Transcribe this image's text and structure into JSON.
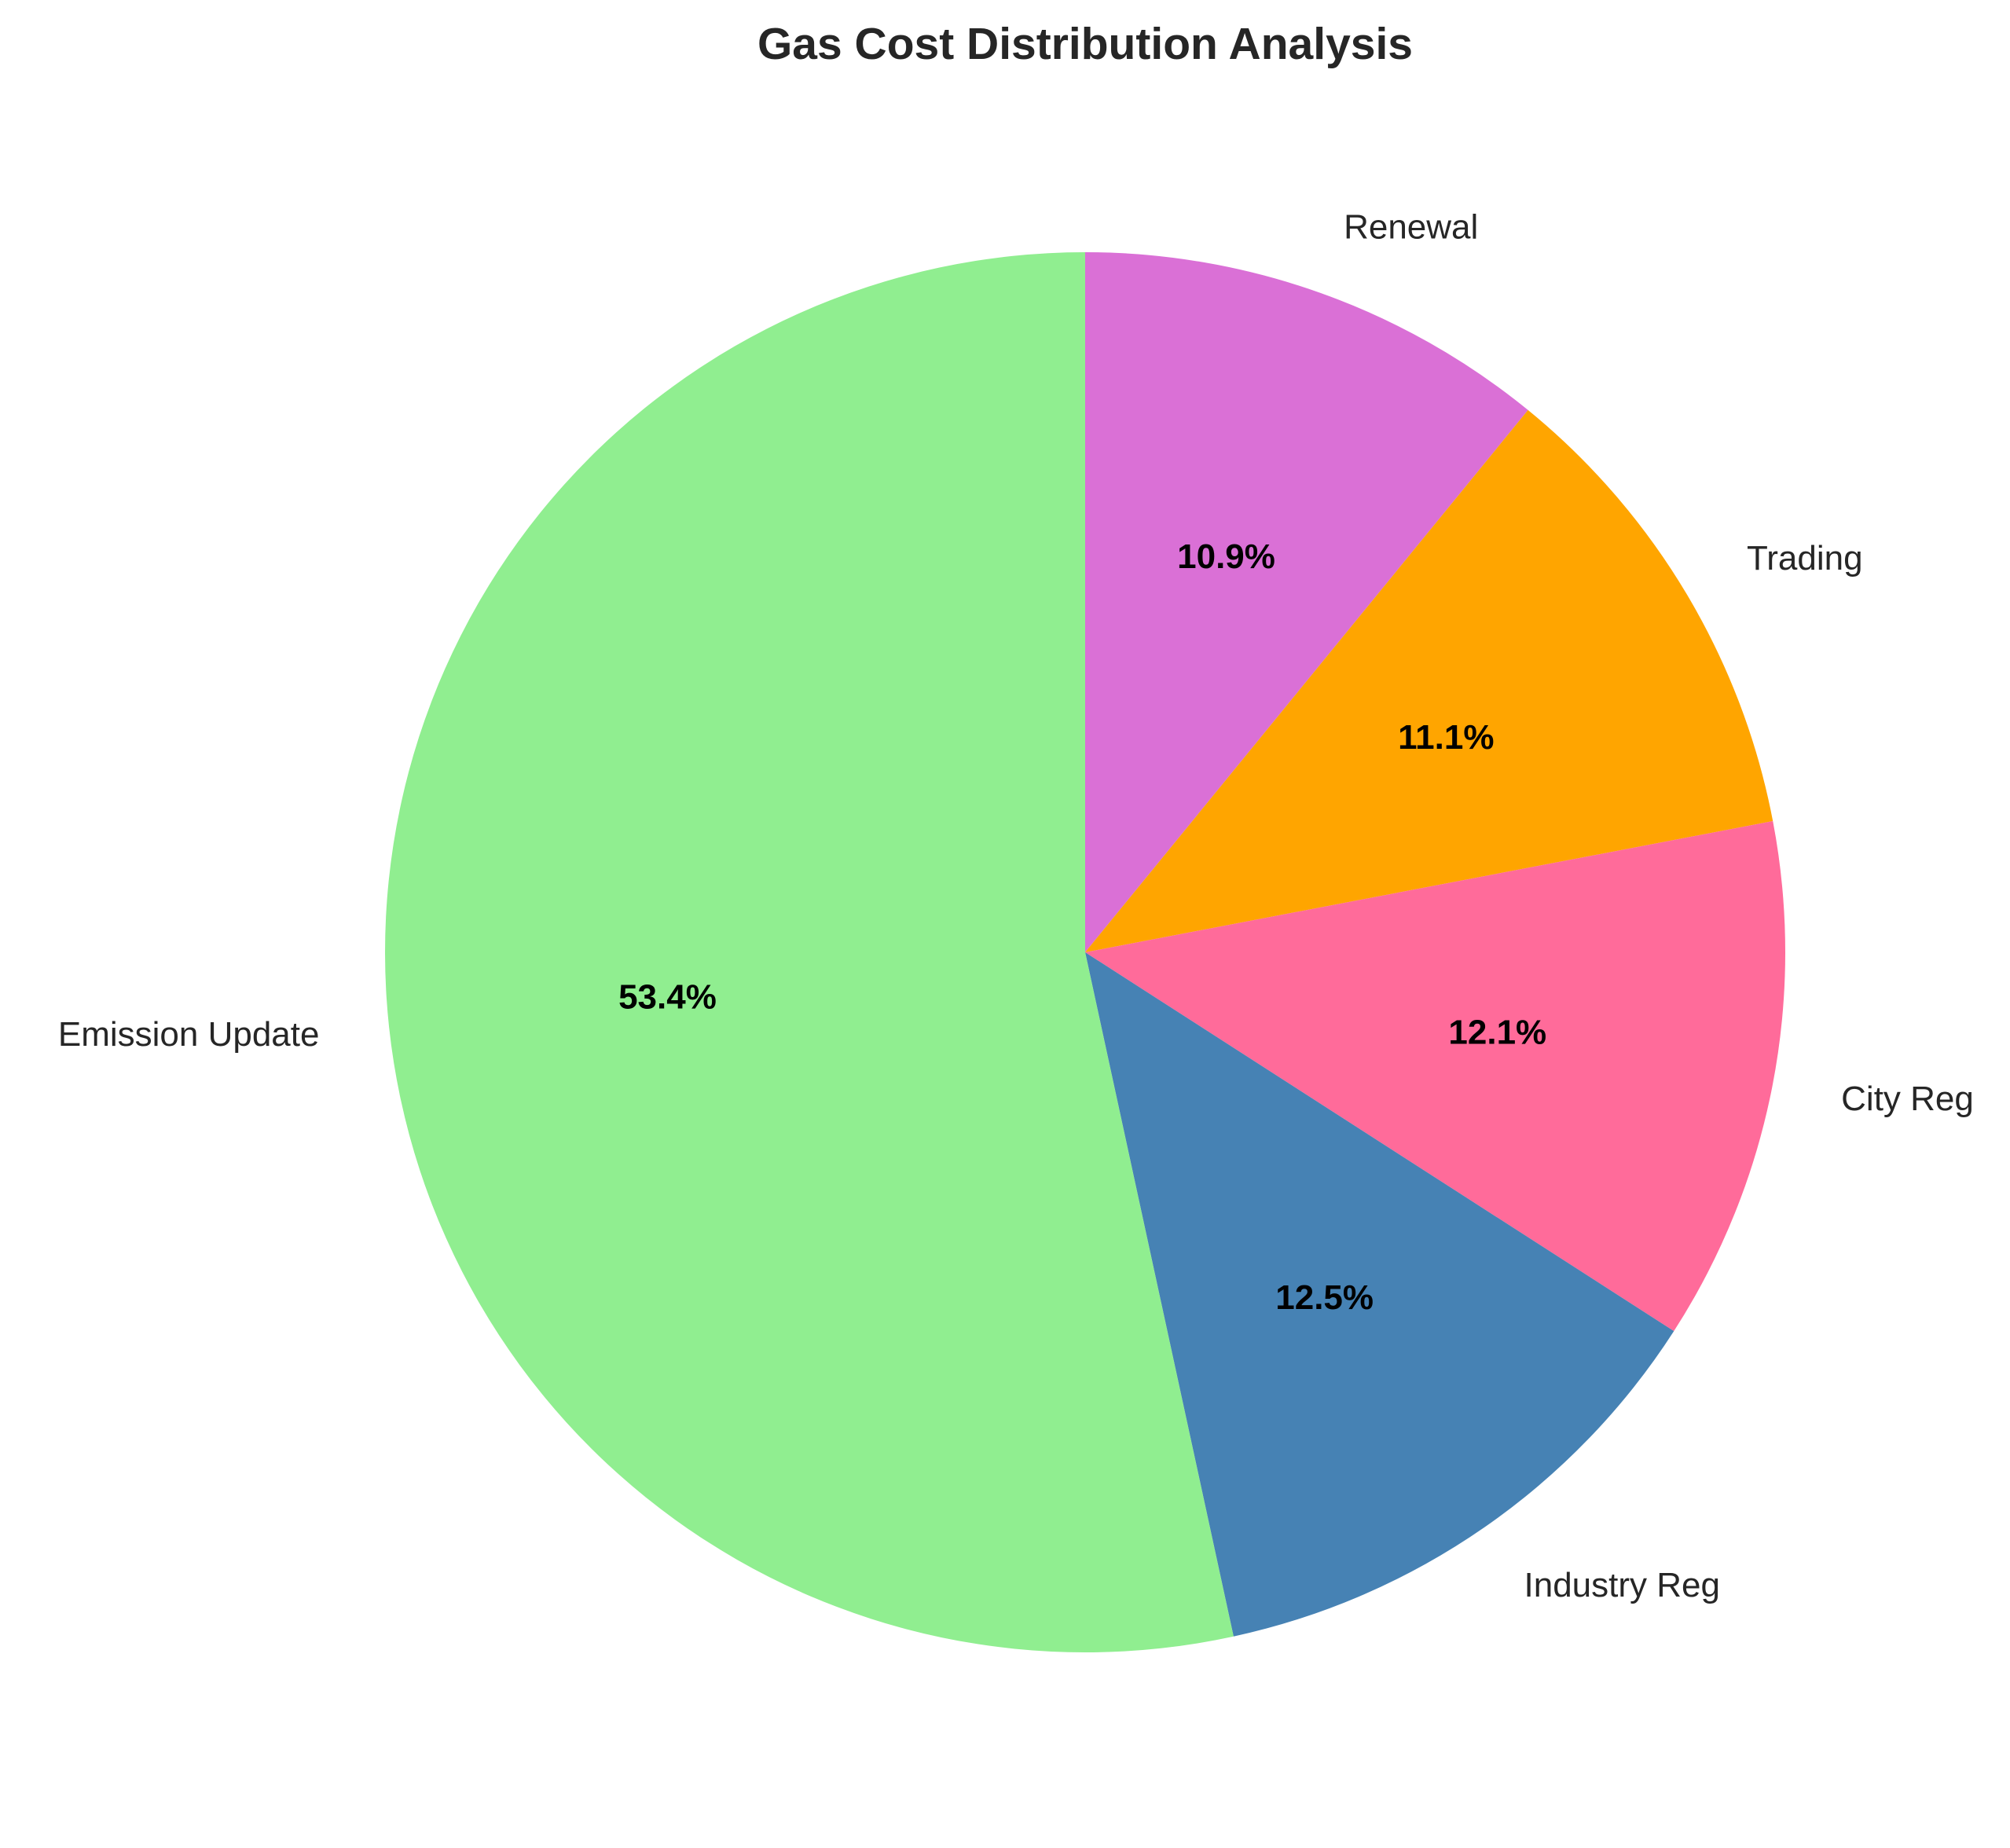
{
  "chart_data": {
    "type": "pie",
    "title": "Gas Cost Distribution Analysis",
    "start_angle_deg": 90,
    "direction": "clockwise",
    "slices": [
      {
        "label": "Renewal",
        "value": 10.9,
        "pct_label": "10.9%",
        "color": "#DA70D6"
      },
      {
        "label": "Trading",
        "value": 11.1,
        "pct_label": "11.1%",
        "color": "#FFA500"
      },
      {
        "label": "City Reg",
        "value": 12.1,
        "pct_label": "12.1%",
        "color": "#FF6B9A"
      },
      {
        "label": "Industry Reg",
        "value": 12.5,
        "pct_label": "12.5%",
        "color": "#4682B4"
      },
      {
        "label": "Emission Update",
        "value": 53.4,
        "pct_label": "53.4%",
        "color": "#90EE90"
      }
    ]
  }
}
